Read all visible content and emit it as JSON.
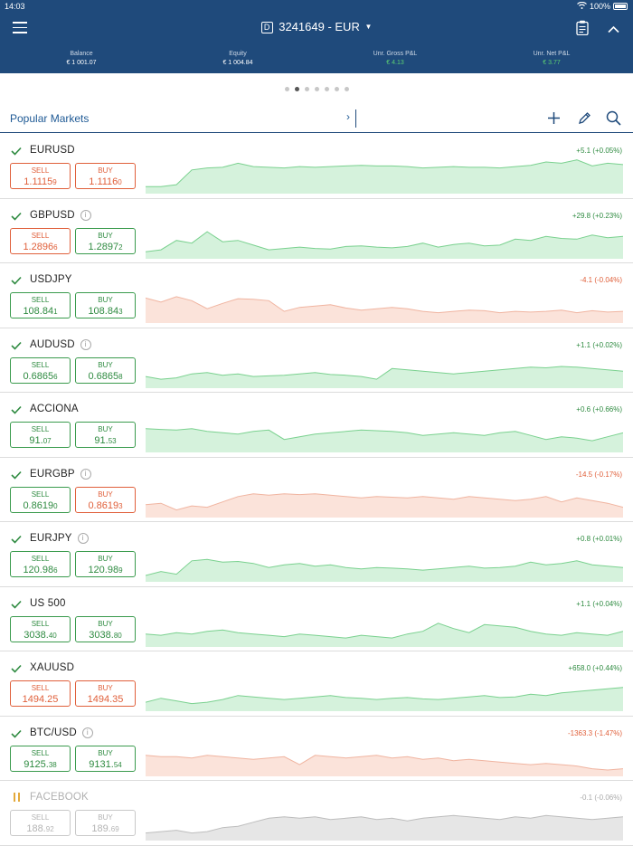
{
  "status": {
    "time": "14:03",
    "battery": "100%"
  },
  "header": {
    "account_badge": "D",
    "account": "3241649 - EUR",
    "stats": [
      {
        "label": "Balance",
        "value": "€ 1 001.07",
        "tone": "white"
      },
      {
        "label": "Equity",
        "value": "€ 1 004.84",
        "tone": "white"
      },
      {
        "label": "Unr. Gross P&L",
        "value": "€ 4.13",
        "tone": "green"
      },
      {
        "label": "Unr. Net P&L",
        "value": "€ 3.77",
        "tone": "green"
      }
    ]
  },
  "pager": {
    "count": 7,
    "active": 1
  },
  "toolbar": {
    "list_name": "Popular Markets"
  },
  "colors": {
    "up_line": "#7ad18f",
    "up_fill": "#d5f2dc",
    "down_line": "#f0b4a0",
    "down_fill": "#fbe3da",
    "mute_line": "#bdbdbd",
    "mute_fill": "#e6e6e6"
  },
  "markets": [
    {
      "symbol": "EURUSD",
      "info": false,
      "state": "active",
      "sell_label": "SELL",
      "sell_main": "1.1115",
      "sell_pip": "9",
      "buy_label": "BUY",
      "buy_main": "1.1116",
      "buy_pip": "0",
      "sell_tone": "red",
      "buy_tone": "red",
      "change": "+5.1 (+0.05%)",
      "trend": "up",
      "spark": [
        5,
        5,
        8,
        30,
        33,
        34,
        40,
        35,
        34,
        33,
        35,
        34,
        35,
        36,
        37,
        36,
        36,
        35,
        33,
        34,
        35,
        34,
        34,
        33,
        35,
        37,
        42,
        40,
        45,
        36,
        40,
        38
      ]
    },
    {
      "symbol": "GBPUSD",
      "info": true,
      "state": "active",
      "sell_label": "SELL",
      "sell_main": "1.2896",
      "sell_pip": "6",
      "buy_label": "BUY",
      "buy_main": "1.2897",
      "buy_pip": "2",
      "sell_tone": "red",
      "buy_tone": "green",
      "change": "+29.8 (+0.23%)",
      "trend": "up",
      "spark": [
        5,
        8,
        22,
        18,
        35,
        20,
        22,
        15,
        8,
        10,
        12,
        10,
        9,
        13,
        14,
        12,
        11,
        13,
        18,
        12,
        16,
        18,
        14,
        15,
        24,
        22,
        28,
        25,
        24,
        30,
        26,
        28
      ]
    },
    {
      "symbol": "USDJPY",
      "info": false,
      "state": "active",
      "sell_label": "SELL",
      "sell_main": "108.84",
      "sell_pip": "1",
      "buy_label": "BUY",
      "buy_main": "108.84",
      "buy_pip": "3",
      "sell_tone": "green",
      "buy_tone": "green",
      "change": "-4.1 (-0.04%)",
      "trend": "down",
      "spark": [
        32,
        26,
        34,
        28,
        16,
        24,
        31,
        30,
        28,
        12,
        18,
        20,
        22,
        17,
        14,
        16,
        18,
        16,
        12,
        10,
        12,
        14,
        13,
        10,
        12,
        11,
        12,
        14,
        10,
        13,
        11,
        12
      ]
    },
    {
      "symbol": "AUDUSD",
      "info": true,
      "state": "active",
      "sell_label": "SELL",
      "sell_main": "0.6865",
      "sell_pip": "6",
      "buy_label": "BUY",
      "buy_main": "0.6865",
      "buy_pip": "8",
      "sell_tone": "green",
      "buy_tone": "green",
      "change": "+1.1 (+0.02%)",
      "trend": "up",
      "spark": [
        12,
        8,
        10,
        16,
        18,
        14,
        16,
        12,
        13,
        14,
        16,
        18,
        15,
        14,
        12,
        8,
        24,
        22,
        20,
        18,
        16,
        18,
        20,
        22,
        24,
        26,
        25,
        27,
        26,
        24,
        22,
        20
      ]
    },
    {
      "symbol": "ACCIONA",
      "info": false,
      "state": "active",
      "sell_label": "SELL",
      "sell_main": "91.",
      "sell_pip": "07",
      "buy_label": "BUY",
      "buy_main": "91.",
      "buy_pip": "53",
      "sell_tone": "green",
      "buy_tone": "green",
      "change": "+0.6 (+0.66%)",
      "trend": "up",
      "spark": [
        30,
        29,
        28,
        30,
        26,
        24,
        22,
        26,
        28,
        14,
        18,
        22,
        24,
        26,
        28,
        27,
        26,
        24,
        20,
        22,
        24,
        22,
        20,
        24,
        26,
        20,
        14,
        18,
        16,
        12,
        18,
        24
      ]
    },
    {
      "symbol": "EURGBP",
      "info": true,
      "state": "active",
      "sell_label": "SELL",
      "sell_main": "0.8619",
      "sell_pip": "0",
      "buy_label": "BUY",
      "buy_main": "0.8619",
      "buy_pip": "3",
      "sell_tone": "green",
      "buy_tone": "red",
      "change": "-14.5 (-0.17%)",
      "trend": "down",
      "spark": [
        14,
        16,
        6,
        12,
        10,
        18,
        26,
        30,
        28,
        30,
        29,
        30,
        28,
        26,
        24,
        26,
        25,
        24,
        26,
        24,
        22,
        26,
        24,
        22,
        20,
        22,
        26,
        18,
        24,
        20,
        16,
        10
      ]
    },
    {
      "symbol": "EURJPY",
      "info": true,
      "state": "active",
      "sell_label": "SELL",
      "sell_main": "120.98",
      "sell_pip": "6",
      "buy_label": "BUY",
      "buy_main": "120.98",
      "buy_pip": "9",
      "sell_tone": "green",
      "buy_tone": "green",
      "change": "+0.8 (+0.01%)",
      "trend": "up",
      "spark": [
        4,
        10,
        6,
        26,
        28,
        24,
        25,
        22,
        16,
        20,
        22,
        18,
        20,
        16,
        14,
        16,
        15,
        14,
        12,
        14,
        16,
        18,
        15,
        16,
        18,
        24,
        20,
        22,
        26,
        20,
        18,
        16
      ]
    },
    {
      "symbol": "US 500",
      "info": false,
      "state": "active",
      "sell_label": "SELL",
      "sell_main": "3038.",
      "sell_pip": "40",
      "buy_label": "BUY",
      "buy_main": "3038.",
      "buy_pip": "80",
      "sell_tone": "green",
      "buy_tone": "green",
      "change": "+1.1 (+0.04%)",
      "trend": "up",
      "spark": [
        14,
        12,
        16,
        14,
        18,
        20,
        16,
        14,
        12,
        10,
        14,
        12,
        10,
        8,
        12,
        10,
        8,
        14,
        18,
        30,
        22,
        16,
        28,
        26,
        24,
        18,
        14,
        12,
        16,
        14,
        12,
        18
      ]
    },
    {
      "symbol": "XAUUSD",
      "info": false,
      "state": "active",
      "sell_label": "SELL",
      "sell_main": "1494.25",
      "sell_pip": "",
      "buy_label": "BUY",
      "buy_main": "1494.35",
      "buy_pip": "",
      "sell_tone": "red",
      "buy_tone": "red",
      "change": "+658.0 (+0.44%)",
      "trend": "up",
      "spark": [
        8,
        14,
        10,
        6,
        8,
        12,
        18,
        16,
        14,
        12,
        14,
        16,
        18,
        15,
        14,
        12,
        14,
        15,
        13,
        12,
        14,
        16,
        18,
        15,
        16,
        20,
        18,
        22,
        24,
        26,
        28,
        30
      ]
    },
    {
      "symbol": "BTC/USD",
      "info": true,
      "state": "active",
      "sell_label": "SELL",
      "sell_main": "9125.",
      "sell_pip": "38",
      "buy_label": "BUY",
      "buy_main": "9131.",
      "buy_pip": "54",
      "sell_tone": "green",
      "buy_tone": "green",
      "change": "-1363.3 (-1.47%)",
      "trend": "down",
      "spark": [
        26,
        24,
        24,
        22,
        26,
        24,
        22,
        20,
        22,
        24,
        12,
        26,
        24,
        22,
        24,
        26,
        22,
        24,
        20,
        22,
        18,
        20,
        18,
        16,
        14,
        12,
        14,
        12,
        10,
        6,
        4,
        6
      ]
    },
    {
      "symbol": "FACEBOOK",
      "info": false,
      "state": "paused",
      "sell_label": "SELL",
      "sell_main": "188.",
      "sell_pip": "92",
      "buy_label": "BUY",
      "buy_main": "189.",
      "buy_pip": "69",
      "sell_tone": "grey",
      "buy_tone": "grey",
      "change": "-0.1 (-0.06%)",
      "trend": "mute",
      "spark": [
        6,
        8,
        10,
        6,
        8,
        14,
        16,
        22,
        28,
        30,
        28,
        30,
        26,
        28,
        30,
        26,
        28,
        24,
        28,
        30,
        32,
        30,
        28,
        26,
        30,
        28,
        32,
        30,
        28,
        26,
        28,
        30
      ]
    }
  ]
}
